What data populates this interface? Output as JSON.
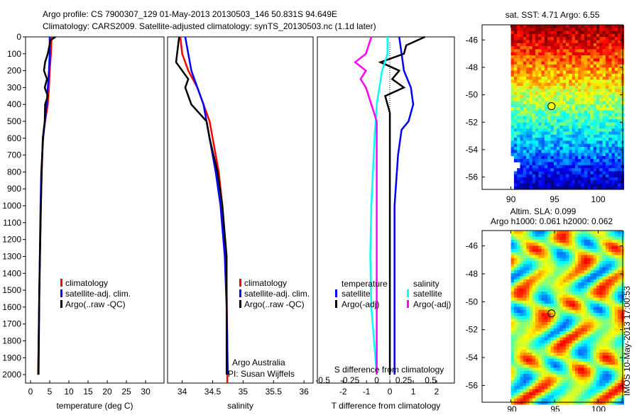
{
  "title_lines": [
    "Argo profile: CS 7900307_129 01-May-2013 20130503_146 50.831S 94.649E",
    "Climatology: CARS2009. Satellite-adjusted climatology: synTS_20130503.nc (1.1d later)"
  ],
  "colors": {
    "climatology": "#ff0000",
    "satellite": "#0000ff",
    "argo": "#000000",
    "sal_satellite": "#00ffff",
    "sal_argo": "#ff00ff"
  },
  "chart_data": [
    {
      "type": "line",
      "id": "temperature",
      "xlabel": "temperature (deg C)",
      "ylabel": "",
      "xlim": [
        -1.3,
        34.8
      ],
      "ylim": [
        2050,
        0
      ],
      "xticks": [
        0,
        5,
        10,
        15,
        20,
        25,
        30
      ],
      "yticks": [
        0,
        100,
        200,
        300,
        400,
        500,
        600,
        700,
        800,
        900,
        1000,
        1100,
        1200,
        1300,
        1400,
        1500,
        1600,
        1700,
        1800,
        1900,
        2000
      ],
      "legend": [
        "climatology",
        "satellite-adj. clim.",
        "Argo(..raw -QC)"
      ],
      "series": [
        {
          "name": "climatology",
          "color": "#ff0000",
          "depth": [
            0,
            100,
            200,
            300,
            400,
            500,
            600,
            800,
            1000,
            1500,
            2000
          ],
          "values": [
            5.5,
            5.3,
            5.0,
            4.8,
            4.5,
            3.8,
            3.2,
            2.9,
            2.7,
            2.3,
            2.0
          ]
        },
        {
          "name": "satellite-adj. clim.",
          "color": "#0000ff",
          "depth": [
            0,
            100,
            200,
            400,
            600,
            800,
            1000,
            1500,
            2000
          ],
          "values": [
            5.0,
            5.0,
            4.8,
            4.2,
            3.3,
            2.8,
            2.6,
            2.3,
            2.1
          ]
        },
        {
          "name": "Argo(..raw -QC)",
          "color": "#000000",
          "depth": [
            0,
            20,
            100,
            150,
            200,
            250,
            300,
            350,
            400,
            500,
            600,
            800,
            1000,
            1500,
            2000
          ],
          "values": [
            6.5,
            5.2,
            4.5,
            3.8,
            3.5,
            4.3,
            3.7,
            4.5,
            3.8,
            3.7,
            3.2,
            2.9,
            2.7,
            2.3,
            2.0
          ]
        }
      ]
    },
    {
      "type": "line",
      "id": "salinity",
      "xlabel": "salinity",
      "xlim": [
        33.76,
        36.15
      ],
      "ylim": [
        2050,
        0
      ],
      "xticks": [
        34,
        34.5,
        35,
        35.5,
        36
      ],
      "legend": [
        "climatology",
        "satellite-adj. clim.",
        "Argo(..raw -QC)"
      ],
      "annotation": [
        "Argo Australia",
        "PI: Susan Wijffels"
      ],
      "series": [
        {
          "name": "climatology",
          "color": "#ff0000",
          "depth": [
            0,
            100,
            200,
            300,
            400,
            500,
            600,
            800,
            1000,
            1200,
            1500,
            1800,
            2050
          ],
          "values": [
            33.97,
            34.0,
            34.1,
            34.25,
            34.35,
            34.45,
            34.5,
            34.6,
            34.66,
            34.7,
            34.73,
            34.74,
            34.74
          ]
        },
        {
          "name": "satellite-adj. clim.",
          "color": "#0000ff",
          "depth": [
            0,
            100,
            200,
            300,
            400,
            600,
            800,
            1000,
            1300,
            1600,
            2000
          ],
          "values": [
            34.05,
            34.1,
            34.15,
            34.25,
            34.35,
            34.45,
            34.55,
            34.63,
            34.7,
            34.73,
            34.75
          ]
        },
        {
          "name": "Argo(..raw -QC)",
          "color": "#000000",
          "depth": [
            0,
            150,
            250,
            300,
            400,
            500,
            600,
            800,
            1000,
            1300,
            1500,
            1700,
            2000
          ],
          "values": [
            33.95,
            33.9,
            34.1,
            34.05,
            34.15,
            34.4,
            34.45,
            34.58,
            34.66,
            34.73,
            34.73,
            34.73,
            34.73
          ]
        }
      ]
    },
    {
      "type": "line",
      "id": "differences",
      "xlabel": "T difference from climatology",
      "x2label": "S difference from climatology",
      "xlim": [
        -3.1,
        2.76
      ],
      "x2lim": [
        -0.55,
        0.72
      ],
      "ylim": [
        2050,
        0
      ],
      "xticks": [
        -2,
        -1,
        0,
        1,
        2
      ],
      "x2ticks": [
        "-0.5",
        "-0.25",
        "0",
        "0.25",
        "0.5"
      ],
      "legend_titles": [
        "temperature",
        "salinity"
      ],
      "legend": [
        "satellite",
        "Argo(-adj)",
        "satellite",
        "Argo(-adj)"
      ],
      "series": [
        {
          "name": "temperature satellite",
          "axis": "T",
          "color": "#0000ff",
          "depth": [
            0,
            100,
            200,
            300,
            400,
            500,
            550,
            700,
            1000,
            1500,
            2000
          ],
          "values": [
            0.4,
            0.5,
            0.6,
            0.9,
            1.0,
            0.8,
            0.5,
            0.35,
            0.2,
            0.2,
            0.2
          ]
        },
        {
          "name": "temperature Argo(-adj)",
          "axis": "T",
          "color": "#000000",
          "depth": [
            0,
            50,
            100,
            150,
            200,
            250,
            300,
            350,
            450,
            600,
            1000,
            2000
          ],
          "values": [
            1.5,
            0.7,
            0.6,
            -0.4,
            0.4,
            0.1,
            0.6,
            -0.2,
            0.0,
            0.0,
            0.0,
            0.0
          ]
        },
        {
          "name": "salinity satellite",
          "axis": "S",
          "color": "#00ffff",
          "depth": [
            0,
            100,
            200,
            400,
            600,
            1000,
            1300,
            1600,
            2000
          ],
          "values": [
            0.1,
            0.1,
            0.05,
            0,
            -0.02,
            -0.05,
            -0.06,
            -0.05,
            0
          ]
        },
        {
          "name": "salinity Argo(-adj)",
          "axis": "S",
          "color": "#ff00ff",
          "depth": [
            0,
            100,
            150,
            200,
            250,
            300,
            400,
            500,
            600,
            1000,
            2000
          ],
          "values": [
            -0.05,
            -0.1,
            -0.2,
            -0.1,
            -0.15,
            -0.1,
            -0.05,
            0,
            0,
            0,
            0
          ]
        }
      ]
    },
    {
      "type": "heatmap",
      "id": "sst-map",
      "title": "sat. SST: 4.71 Argo: 6.55",
      "xlim": [
        86.7,
        102.8
      ],
      "ylim": [
        -56.9,
        -44.9
      ],
      "xticks": [
        90,
        95,
        100
      ],
      "yticks": [
        -46,
        -48,
        -50,
        -52,
        -54,
        -56
      ],
      "marker": {
        "lon": 94.649,
        "lat": -50.831
      }
    },
    {
      "type": "heatmap",
      "id": "sla-map",
      "title_lines": [
        "Altim. SLA: 0.099",
        "Argo h1000: 0.061 h2000: 0.062"
      ],
      "xlim": [
        86.7,
        102.8
      ],
      "ylim": [
        -57.2,
        -44.9
      ],
      "xticks": [
        90,
        95,
        100
      ],
      "yticks": [
        -46,
        -48,
        -50,
        -52,
        -54,
        -56
      ],
      "marker": {
        "lon": 94.649,
        "lat": -50.831
      }
    }
  ],
  "side_stamp": "IMOS 10-May-2013 17:00:53"
}
